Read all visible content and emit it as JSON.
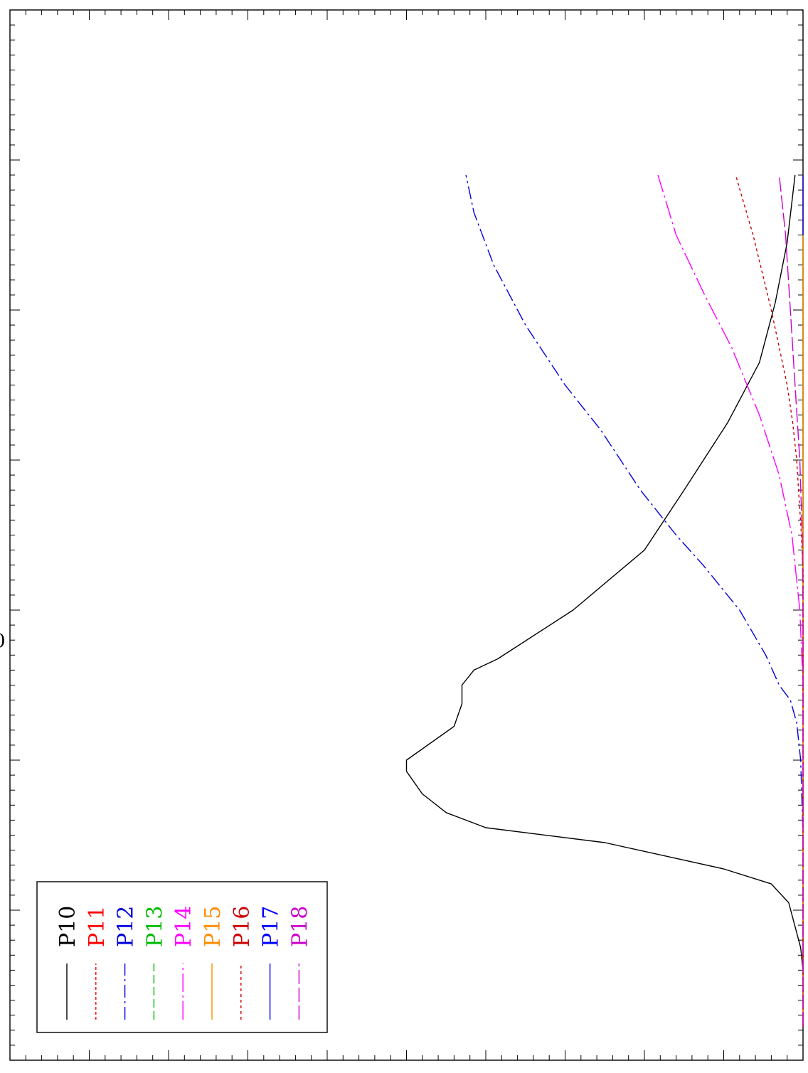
{
  "chart_data": {
    "type": "line",
    "orientation": "rotated-90",
    "title": "",
    "xlabel": "",
    "ylabel": "",
    "tick_labels_visible": false,
    "partial_glyph": "0",
    "x_range": [
      0,
      14
    ],
    "y_range": [
      0,
      100
    ],
    "grid": false,
    "legend_position": "bottom-left",
    "series": [
      {
        "name": "P10",
        "color": "#000000",
        "dash": "none",
        "points": [
          [
            0.45,
            0
          ],
          [
            1.2,
            0
          ],
          [
            1.5,
            0.3
          ],
          [
            2.1,
            1.8
          ],
          [
            2.35,
            4
          ],
          [
            2.55,
            10
          ],
          [
            2.9,
            25
          ],
          [
            3.1,
            40
          ],
          [
            3.3,
            45
          ],
          [
            3.55,
            48
          ],
          [
            3.85,
            50
          ],
          [
            4.0,
            50
          ],
          [
            4.45,
            44
          ],
          [
            4.75,
            43
          ],
          [
            5.0,
            43
          ],
          [
            5.2,
            41.5
          ],
          [
            5.35,
            38.5
          ],
          [
            6.0,
            29
          ],
          [
            6.8,
            20
          ],
          [
            7.6,
            15
          ],
          [
            8.5,
            9.5
          ],
          [
            9.3,
            5.5
          ],
          [
            10.1,
            3.5
          ],
          [
            10.9,
            2
          ],
          [
            11.8,
            1
          ]
        ]
      },
      {
        "name": "P11",
        "color": "#ff0000",
        "dash": "4,3",
        "points": [
          [
            0.45,
            0
          ],
          [
            5.0,
            0
          ],
          [
            7.0,
            0
          ],
          [
            8.0,
            0
          ],
          [
            10.0,
            0
          ],
          [
            11.8,
            0
          ]
        ]
      },
      {
        "name": "P12",
        "color": "#0000dd",
        "dash": "18,5,3,5",
        "points": [
          [
            0.45,
            0
          ],
          [
            3.0,
            0
          ],
          [
            4.0,
            0.3
          ],
          [
            4.5,
            0.8
          ],
          [
            4.8,
            1.6
          ],
          [
            5.0,
            3
          ],
          [
            5.4,
            4.7
          ],
          [
            6.0,
            8
          ],
          [
            6.6,
            12.6
          ],
          [
            7.0,
            16
          ],
          [
            7.6,
            20.5
          ],
          [
            8.4,
            25.5
          ],
          [
            9.0,
            30
          ],
          [
            9.8,
            35
          ],
          [
            10.6,
            39
          ],
          [
            11.3,
            41.5
          ],
          [
            11.8,
            42.5
          ]
        ]
      },
      {
        "name": "P13",
        "color": "#00bb00",
        "dash": "12,5",
        "points": [
          [
            0.45,
            0
          ],
          [
            11.8,
            0
          ]
        ]
      },
      {
        "name": "P14",
        "color": "#ff00ff",
        "dash": "26,5,3,5",
        "points": [
          [
            0.45,
            0
          ],
          [
            5.0,
            0
          ],
          [
            6.0,
            0.4
          ],
          [
            7.0,
            1.4
          ],
          [
            7.8,
            3
          ],
          [
            8.6,
            5.5
          ],
          [
            9.5,
            9
          ],
          [
            10.2,
            12.4
          ],
          [
            11.0,
            16
          ],
          [
            11.8,
            18.3
          ]
        ]
      },
      {
        "name": "P15",
        "color": "#ff8c00",
        "dash": "none",
        "points": [
          [
            0.45,
            0
          ],
          [
            11.8,
            0
          ]
        ]
      },
      {
        "name": "P16",
        "color": "#cc0000",
        "dash": "4,4",
        "points": [
          [
            0.45,
            0
          ],
          [
            6.5,
            0
          ],
          [
            7.0,
            0.2
          ],
          [
            7.5,
            0.5
          ],
          [
            8.0,
            0.8
          ],
          [
            8.5,
            1.3
          ],
          [
            9.0,
            2
          ],
          [
            10.0,
            4
          ],
          [
            11.0,
            6.3
          ],
          [
            11.8,
            8.5
          ]
        ]
      },
      {
        "name": "P17",
        "color": "#0000ff",
        "dash": "none",
        "points": [
          [
            11.0,
            0
          ],
          [
            11.8,
            0
          ]
        ]
      },
      {
        "name": "P18",
        "color": "#cc00cc",
        "dash": "20,5",
        "points": [
          [
            0.45,
            0
          ],
          [
            6.0,
            0
          ],
          [
            7.0,
            0.1
          ],
          [
            8.0,
            0.4
          ],
          [
            9.0,
            1
          ],
          [
            10.0,
            1.6
          ],
          [
            11.0,
            2.2
          ],
          [
            11.8,
            3
          ]
        ]
      }
    ]
  }
}
